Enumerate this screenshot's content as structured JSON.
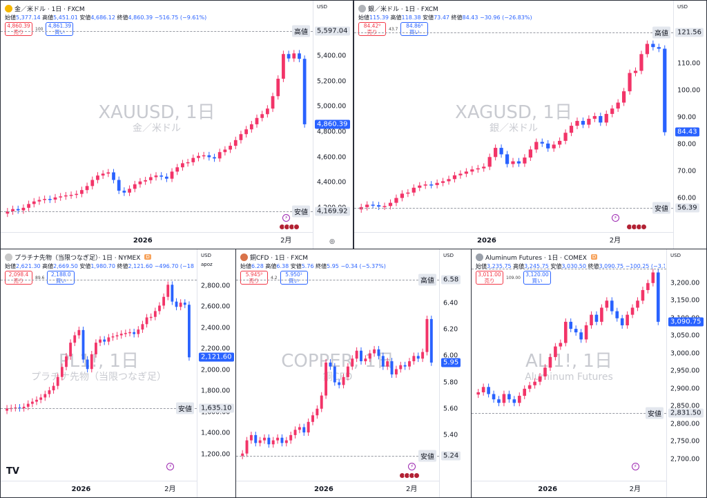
{
  "colors": {
    "up": "#f23468",
    "down": "#2962ff",
    "gold": "#f5b700",
    "silver": "#b0b3b8",
    "copper": "#d9734a",
    "aluminum": "#9aa0aa",
    "platinum": "#c8c8c8"
  },
  "panes": [
    {
      "id": "gold",
      "title": "金／米ドル · 1日 · FXCM",
      "show_d": false,
      "ohlc": {
        "o_lbl": "始値",
        "o": "5,377.14",
        "h_lbl": "高値",
        "h": "5,451.01",
        "l_lbl": "安値",
        "l": "4,686.12",
        "c_lbl": "終値",
        "c": "4,860.39",
        "chg": "−516.75 (−9.61%)"
      },
      "sell": {
        "price": "4,860.39",
        "label": "売り"
      },
      "buy": {
        "price": "4,861.39",
        "label": "買い"
      },
      "spread": "100",
      "watermark": "XAUUSD, 1日",
      "watermark_sub": "金／米ドル",
      "unit": "USD",
      "unit2": "",
      "year": "2026",
      "month": "2月",
      "chart_data": {
        "type": "candlestick",
        "ylim": [
          4150,
          5640
        ],
        "yticks": [
          4200,
          4400,
          4600,
          4800,
          5000,
          5200,
          5400
        ],
        "ytick_labels": [
          "4,200.00",
          "4,400.00",
          "4,600.00",
          "4,800.00",
          "5,000.00",
          "5,200.00",
          "5,400.00"
        ],
        "high_label": {
          "text": "高値",
          "value": 5597.04,
          "display": "5,597.04"
        },
        "low_label": {
          "text": "安値",
          "value": 4169.92,
          "display": "4,169.92"
        },
        "current": {
          "value": 4860.39,
          "display": "4,860.39"
        },
        "closes": [
          4172,
          4190,
          4180,
          4200,
          4230,
          4250,
          4262,
          4270,
          4265,
          4282,
          4290,
          4298,
          4302,
          4310,
          4340,
          4372,
          4420,
          4455,
          4470,
          4480,
          4420,
          4335,
          4320,
          4350,
          4386,
          4408,
          4418,
          4442,
          4455,
          4446,
          4430,
          4486,
          4520,
          4552,
          4560,
          4594,
          4610,
          4615,
          4600,
          4590,
          4640,
          4660,
          4690,
          4735,
          4782,
          4820,
          4860,
          4910,
          4940,
          4984,
          5082,
          5220,
          5415,
          5380,
          5420,
          5377,
          4860
        ],
        "year_at": 26,
        "month_at": 53,
        "flags_at": 54
      }
    },
    {
      "id": "silver",
      "title": "銀／米ドル · 1日 · FXCM",
      "show_d": false,
      "ohlc": {
        "o_lbl": "始値",
        "o": "115.39",
        "h_lbl": "高値",
        "h": "118.38",
        "l_lbl": "安値",
        "l": "73.47",
        "c_lbl": "終値",
        "c": "84.43",
        "chg": "−30.96 (−26.83%)"
      },
      "sell": {
        "price": "84.42⁹",
        "label": "売り"
      },
      "buy": {
        "price": "84.86⁶",
        "label": "買い"
      },
      "spread": "43.7",
      "watermark": "XAGUSD, 1日",
      "watermark_sub": "銀／米ドル",
      "unit": "USD",
      "unit2": "",
      "year": "2026",
      "month": "2月",
      "chart_data": {
        "type": "candlestick",
        "ylim": [
          54,
          124
        ],
        "yticks": [
          60,
          70,
          80,
          90,
          100,
          110
        ],
        "ytick_labels": [
          "60.00",
          "70.00",
          "80.00",
          "90.00",
          "100.00",
          "110.00"
        ],
        "high_label": {
          "text": "高値",
          "value": 121.56,
          "display": "121.56"
        },
        "low_label": {
          "text": "安値",
          "value": 56.39,
          "display": "56.39"
        },
        "current": {
          "value": 84.43,
          "display": "84.43"
        },
        "closes": [
          56.6,
          57.5,
          57.3,
          56.8,
          57.0,
          58.2,
          60.0,
          61.6,
          62.0,
          63.8,
          64.6,
          65.0,
          64.8,
          65.6,
          66.2,
          67.0,
          68.4,
          69.0,
          69.8,
          70.6,
          71.0,
          71.6,
          75.2,
          78.6,
          76.2,
          72.6,
          73.6,
          72.8,
          75.0,
          78.0,
          80.8,
          80.2,
          78.4,
          79.8,
          81.2,
          84.2,
          86.8,
          88.6,
          87.2,
          89.4,
          90.4,
          88.0,
          91.2,
          93.2,
          95.4,
          99.6,
          106.4,
          107.2,
          113.4,
          117.2,
          116.0,
          115.4,
          84.4
        ],
        "year_at": 22,
        "month_at": 44,
        "flags_at": 48
      }
    },
    {
      "id": "platinum",
      "title": "プラチナ先物（当限つなぎ足）· 1日 · NYMEX",
      "show_d": true,
      "ohlc": {
        "o_lbl": "始値",
        "o": "2,621.30",
        "h_lbl": "高値",
        "h": "2,669.50",
        "l_lbl": "安値",
        "l": "1,980.70",
        "c_lbl": "終値",
        "c": "2,121.60",
        "chg": "−496.70 (−18.97%)"
      },
      "sell": {
        "price": "2,098.4",
        "label": "売り"
      },
      "buy": {
        "price": "2,188.0",
        "label": "買い"
      },
      "spread": "89.6",
      "watermark": "PL1!, 1日",
      "watermark_sub": "プラチナ先物（当限つなぎ足）",
      "unit": "USD",
      "unit2": "apoz",
      "year": "2026",
      "month": "2月",
      "chart_data": {
        "type": "candlestick",
        "ylim": [
          1120,
          2910
        ],
        "yticks": [
          1200,
          1400,
          1600,
          1800,
          2000,
          2200,
          2400,
          2600,
          2800
        ],
        "ytick_labels": [
          "1,200.00",
          "1,400.00",
          "1,600.00",
          "1,800.00",
          "2,000.00",
          "2,200.00",
          "2,400.00",
          "2,600.00",
          "2,800.00"
        ],
        "high_label": {
          "text": "",
          "value": 2860,
          "display": ""
        },
        "low_label": {
          "text": "安値",
          "value": 1635.1,
          "display": "1,635.10"
        },
        "current": {
          "value": 2121.6,
          "display": "2,121.60"
        },
        "closes": [
          1636,
          1640,
          1645,
          1638,
          1652,
          1680,
          1700,
          1718,
          1740,
          1772,
          1808,
          1850,
          1935,
          2030,
          2130,
          2260,
          2330,
          2380,
          2100,
          2010,
          2150,
          2260,
          2290,
          2270,
          2310,
          2320,
          2330,
          2345,
          2352,
          2360,
          2342,
          2385,
          2436,
          2500,
          2505,
          2560,
          2612,
          2695,
          2810,
          2650,
          2600,
          2640,
          2620,
          2121
        ],
        "year_at": 18,
        "month_at": 39,
        "flags_at": -1
      }
    },
    {
      "id": "copper",
      "title": "銅CFD · 1日 · FXCM",
      "show_d": false,
      "ohlc": {
        "o_lbl": "始値",
        "o": "6.28",
        "h_lbl": "高値",
        "h": "6.38",
        "l_lbl": "安値",
        "l": "5.76",
        "c_lbl": "終値",
        "c": "5.95",
        "chg": "−0.34 (−5.37%)"
      },
      "sell": {
        "price": "5.945⁹",
        "label": "売り"
      },
      "buy": {
        "price": "5.950¹",
        "label": "買い"
      },
      "spread": "4.2",
      "watermark": "COPPER, 1日",
      "watermark_sub": "銅CFD",
      "unit": "USD",
      "unit2": "",
      "year": "2026",
      "month": "2月",
      "chart_data": {
        "type": "candlestick",
        "ylim": [
          5.19,
          6.62
        ],
        "yticks": [
          5.4,
          5.6,
          5.8,
          6.0,
          6.2,
          6.4
        ],
        "ytick_labels": [
          "5.40",
          "5.60",
          "5.80",
          "6.00",
          "6.20",
          "6.40"
        ],
        "high_label": {
          "text": "高値",
          "value": 6.58,
          "display": "6.58"
        },
        "low_label": {
          "text": "安値",
          "value": 5.24,
          "display": "5.24"
        },
        "current": {
          "value": 5.95,
          "display": "5.95"
        },
        "closes": [
          5.26,
          5.36,
          5.4,
          5.34,
          5.36,
          5.38,
          5.33,
          5.36,
          5.38,
          5.34,
          5.36,
          5.4,
          5.44,
          5.46,
          5.42,
          5.5,
          5.55,
          5.6,
          5.7,
          5.95,
          5.92,
          5.8,
          5.78,
          5.84,
          5.92,
          5.98,
          6.04,
          5.96,
          5.98,
          6.02,
          6.05,
          6.0,
          5.92,
          5.96,
          5.86,
          5.9,
          5.93,
          5.92,
          5.96,
          6.0,
          5.98,
          6.03,
          6.28,
          5.95
        ],
        "year_at": 19,
        "month_at": 39,
        "flags_at": 39
      }
    },
    {
      "id": "aluminum",
      "title": "Aluminum Futures · 1日 · COMEX",
      "show_d": true,
      "ohlc": {
        "o_lbl": "始値",
        "o": "3,235.75",
        "h_lbl": "高値",
        "h": "3,245.75",
        "l_lbl": "安値",
        "l": "3,030.50",
        "c_lbl": "終値",
        "c": "3,090.75",
        "chg": "−100.25 (−3.14%)"
      },
      "sell": {
        "price": "3,011.00",
        "label": "売り"
      },
      "buy": {
        "price": "3,120.00",
        "label": "買い"
      },
      "spread": "109.00",
      "watermark": "ALI1!, 1日",
      "watermark_sub": "Aluminum Futures",
      "unit": "USD",
      "unit2": "",
      "year": "2026",
      "month": "2月",
      "chart_data": {
        "type": "candlestick",
        "ylim": [
          2690,
          3225
        ],
        "yticks": [
          2700,
          2750,
          2800,
          2850,
          2900,
          2950,
          3000,
          3050,
          3100,
          3150,
          3200
        ],
        "ytick_labels": [
          "2,700.00",
          "2,750.00",
          "2,800.00",
          "2,850.00",
          "2,900.00",
          "2,950.00",
          "3,000.00",
          "3,050.00",
          "3,100.00",
          "3,150.00",
          "3,200.00"
        ],
        "high_label": {
          "text": "",
          "value": 3240,
          "display": ""
        },
        "low_label": {
          "text": "安値",
          "value": 2831.5,
          "display": "2,831.50"
        },
        "current": {
          "value": 3090.75,
          "display": "3,090.75"
        },
        "closes": [
          2890,
          2905,
          2885,
          2870,
          2860,
          2885,
          2870,
          2860,
          2880,
          2900,
          2910,
          2920,
          2935,
          2960,
          2990,
          3020,
          3030,
          3090,
          3070,
          3060,
          3040,
          3080,
          3110,
          3090,
          3130,
          3150,
          3120,
          3100,
          3080,
          3110,
          3130,
          3150,
          3180,
          3200,
          3230,
          3090
        ],
        "year_at": 14,
        "month_at": 31,
        "flags_at": -1
      }
    }
  ]
}
